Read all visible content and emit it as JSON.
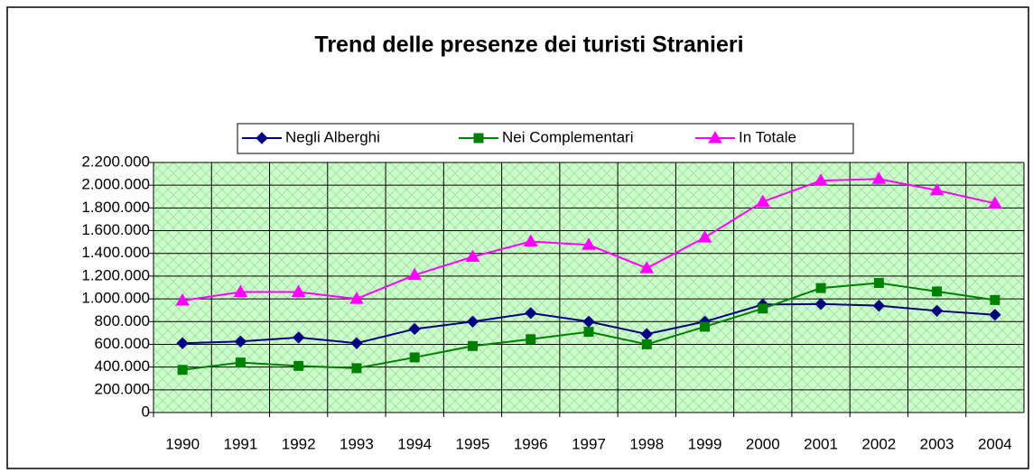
{
  "chart_data": {
    "type": "line",
    "title": "Trend delle presenze dei turisti Stranieri",
    "categories": [
      "1990",
      "1991",
      "1992",
      "1993",
      "1994",
      "1995",
      "1996",
      "1997",
      "1998",
      "1999",
      "2000",
      "2001",
      "2002",
      "2003",
      "2004"
    ],
    "series": [
      {
        "name": "Negli Alberghi",
        "color": "#000080",
        "marker": "diamond",
        "values": [
          610000,
          625000,
          660000,
          610000,
          735000,
          800000,
          875000,
          800000,
          690000,
          800000,
          950000,
          955000,
          940000,
          895000,
          860000
        ]
      },
      {
        "name": "Nei Complementari",
        "color": "#008000",
        "marker": "square",
        "values": [
          375000,
          440000,
          410000,
          390000,
          485000,
          585000,
          645000,
          710000,
          600000,
          755000,
          915000,
          1095000,
          1140000,
          1065000,
          990000
        ]
      },
      {
        "name": "In Totale",
        "color": "#ff00ff",
        "marker": "triangle",
        "values": [
          985000,
          1060000,
          1060000,
          1000000,
          1210000,
          1370000,
          1505000,
          1475000,
          1270000,
          1540000,
          1855000,
          2040000,
          2055000,
          1955000,
          1840000
        ]
      }
    ],
    "ylim": [
      0,
      2200000
    ],
    "yticks": [
      0,
      {
        "value": 200000,
        "label": "200.000"
      },
      {
        "value": 400000,
        "label": "400.000"
      },
      {
        "value": 600000,
        "label": "600.000"
      },
      {
        "value": 800000,
        "label": "800.000"
      },
      {
        "value": 1000000,
        "label": "1.000.000"
      },
      {
        "value": 1200000,
        "label": "1.200.000"
      },
      {
        "value": 1400000,
        "label": "1.400.000"
      },
      {
        "value": 1600000,
        "label": "1.600.000"
      },
      {
        "value": 1800000,
        "label": "1.800.000"
      },
      {
        "value": 2000000,
        "label": "2.000.000"
      },
      {
        "value": 2200000,
        "label": "2.200.000"
      }
    ],
    "grid": true,
    "legend": "top"
  }
}
